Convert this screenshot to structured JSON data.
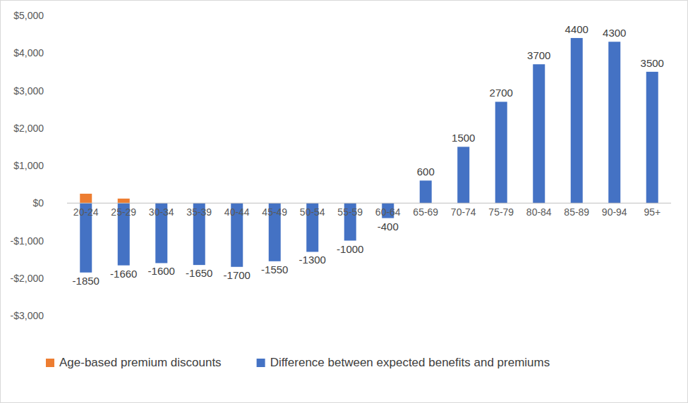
{
  "chart_data": {
    "type": "bar",
    "categories": [
      "20-24",
      "25-29",
      "30-34",
      "35-39",
      "40-44",
      "45-49",
      "50-54",
      "55-59",
      "60-64",
      "65-69",
      "70-74",
      "75-79",
      "80-84",
      "85-89",
      "90-94",
      "95+"
    ],
    "series": [
      {
        "name": "Age-based premium discounts",
        "color": "#ed7d31",
        "values": [
          250,
          120,
          null,
          null,
          null,
          null,
          null,
          null,
          null,
          null,
          null,
          null,
          null,
          null,
          null,
          null
        ]
      },
      {
        "name": "Difference between expected benefits and premiums",
        "color": "#4472c4",
        "data_labels": true,
        "values": [
          -1850,
          -1660,
          -1600,
          -1650,
          -1700,
          -1550,
          -1300,
          -1000,
          -400,
          600,
          1500,
          2700,
          3700,
          4400,
          4300,
          3500
        ]
      }
    ],
    "stacked": true,
    "ylim": [
      -3000,
      5000
    ],
    "yticks": [
      {
        "value": -3000,
        "label": "-$3,000"
      },
      {
        "value": -2000,
        "label": "-$2,000"
      },
      {
        "value": -1000,
        "label": "-$1,000"
      },
      {
        "value": 0,
        "label": "$0"
      },
      {
        "value": 1000,
        "label": "$1,000"
      },
      {
        "value": 2000,
        "label": "$2,000"
      },
      {
        "value": 3000,
        "label": "$3,000"
      },
      {
        "value": 4000,
        "label": "$4,000"
      },
      {
        "value": 5000,
        "label": "$5,000"
      }
    ],
    "grid": false,
    "legend": "bottom"
  }
}
